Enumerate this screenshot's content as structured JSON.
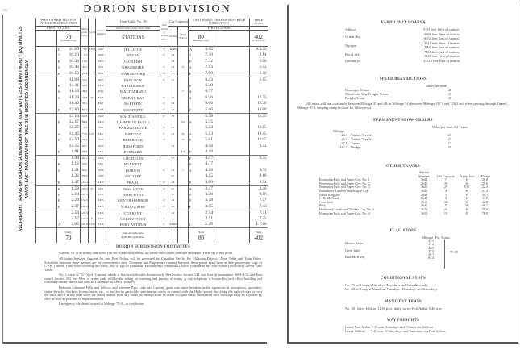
{
  "page_number": "246",
  "title": "DORION SUBDIVISION",
  "side_note": "ALL FREIGHT TRAINS ON DORION SUBDIVISION MUST KEEP NOT LESS THAN TWENTY (20) MINUTES APART. LAST PARAGRAPH OF RULE 91 IS MODIFIED ACCORDINGLY.",
  "header": {
    "westward": "WESTWARD TRAINS INFERIOR DIRECTION",
    "eastward": "EASTWARD TRAINS SUPERIOR DIRECTION",
    "first_class": "FIRST CLASS",
    "third_class": "THIRD CLASS",
    "miles": "Miles from Jellicoe",
    "symbols": "Symbols",
    "station_numbers": "Station Numbers",
    "timetable": "Time Table No. 85",
    "effective": "Taking Effect June 23rd, 1946",
    "stations": "STATIONS",
    "train_orders": "Train Orders or Telephone Offices",
    "car_capacity": "Car Capacity",
    "sidings": "Sidings",
    "other_tracks": "Other Tracks",
    "t79": "79",
    "t80": "80",
    "t402": "402",
    "passenger_daily": "Passenger Daily",
    "freight_daily": "Freight Daily",
    "pm": "PM",
    "am": "AM"
  },
  "rows": [
    [
      "L",
      "10.00",
      "0.0",
      "CKW",
      "3407",
      "JELLICOE",
      "T",
      "YARD",
      "",
      "A",
      "8.05",
      "A 3.40"
    ],
    [
      "*",
      "10.10",
      "5.4",
      "",
      "3409",
      "NEZAH",
      "P",
      "46",
      "",
      "*",
      "7.30",
      "2.14"
    ],
    [
      "F",
      "10.24",
      "13.6",
      "",
      "3410",
      "JACKFISH",
      "",
      "46",
      "",
      "F",
      "7.32",
      "1.56"
    ],
    [
      "S",
      "10.43",
      "20.4",
      "",
      "3411",
      "BRADMORE",
      "T",
      "46",
      "11",
      "S",
      "7.13",
      "1.42"
    ],
    [
      "F",
      "10.53",
      "25.4",
      "",
      "3412",
      "WARNEFORD",
      "P",
      "35",
      "",
      "F",
      "7.00",
      "1.30"
    ],
    [
      "",
      "11.09",
      "31.6",
      "",
      "3413",
      "PAYLOOR",
      "P",
      "47",
      "",
      "",
      "6.43",
      "1.15"
    ],
    [
      "F",
      "11.11",
      "34.9",
      "",
      "3440",
      "FARLOOBER",
      "",
      "",
      "",
      "F",
      "6.40",
      ""
    ],
    [
      "S",
      "11.15",
      "36.4",
      "",
      "3414",
      "MACDIARMID",
      "",
      "",
      "5",
      "S",
      "6.37",
      ""
    ],
    [
      "S",
      "11.29",
      "41.3",
      "W",
      "3415",
      "ORIENT BAY",
      "P",
      "46",
      "",
      "S",
      "6.26",
      "12.55"
    ],
    [
      "",
      "11.46",
      "50.1",
      "",
      "3417",
      "McKIRDY",
      "P",
      "46",
      "",
      "",
      "6.06",
      "12.30"
    ],
    [
      "F",
      "12.06",
      "60.3",
      "",
      "3418",
      "ROCHETTE",
      "P",
      "47",
      "",
      "F",
      "5.46",
      "12.06"
    ],
    [
      "",
      "12.14",
      "63.8",
      "",
      "3419",
      "MACDARRILL",
      "P",
      "35",
      "",
      "",
      "5.38",
      "11.25"
    ],
    [
      "F",
      "12.17",
      "66.4",
      "",
      "3420",
      "CAMERON FALLS",
      "",
      "",
      "W1",
      "S",
      "5.35",
      ""
    ],
    [
      "",
      "12.27",
      "71.5",
      "",
      "3421",
      "PARMACHENIE",
      "P",
      "47",
      "",
      "",
      "5.24",
      "11.05"
    ],
    [
      "S",
      "12.40",
      "77.9",
      "CW",
      "3422",
      "NIPIGON",
      "T",
      "42",
      "32",
      "S",
      "5.13",
      "10.45"
    ],
    [
      "F",
      "12.50",
      "82.4",
      "",
      "3424",
      "RED ROCK",
      "T",
      "",
      "42",
      "F",
      "5.01",
      "10.05"
    ],
    [
      "",
      "12.55",
      "84.7",
      "",
      "3425",
      "ROSSFORD",
      "",
      "46",
      "",
      "",
      "4.56",
      "9.53"
    ],
    [
      "F",
      "1.01",
      "88.4",
      "",
      "3441",
      "EVERARD",
      "",
      "",
      "E4",
      "F",
      "4.49",
      ""
    ],
    [
      "",
      "1.04",
      "89.5",
      "",
      "3426",
      "GOODELIN",
      "",
      "47",
      "",
      "F",
      "4.47",
      "9.45"
    ],
    [
      "F",
      "1.12",
      "93.0",
      "",
      "3427",
      "HURKETT",
      "",
      "",
      "",
      "F",
      "4.37",
      ""
    ],
    [
      "S",
      "1.21",
      "95.9",
      "",
      "3428",
      "DORION",
      "P",
      "56",
      "7",
      "S",
      "4.28",
      "9.33"
    ],
    [
      "",
      "1.32",
      "106.6",
      "",
      "3429",
      "ANCLIFF",
      "",
      "47",
      "",
      "",
      "4.15",
      "9.10"
    ],
    [
      "F",
      "1.47",
      "114.4",
      "",
      "3430",
      "PEARL",
      "P",
      "44",
      "",
      "F",
      "4.00",
      "8.54"
    ],
    [
      "F",
      "1.58",
      "123.4",
      "W",
      "3431",
      "PASS LAKE",
      "P",
      "47",
      "",
      "S",
      "3.47",
      "8.40"
    ],
    [
      "F",
      "2.14",
      "129.3",
      "",
      "3432",
      "AMETHYST",
      "",
      "47",
      "",
      "F",
      "3.28",
      "8.10"
    ],
    [
      "F",
      "2.24",
      "134.5",
      "",
      "3433",
      "SILVER HARBOR",
      "P",
      "42",
      "",
      "F",
      "3.18",
      "7.57"
    ],
    [
      "F",
      "2.37",
      "140.4",
      "",
      "3435",
      "WILD GOOSE",
      "P",
      "46",
      "",
      "F",
      "3.05",
      "7.43"
    ],
    [
      "",
      "2.54",
      "145.5",
      "",
      "3436",
      "CURRENT",
      "",
      "46",
      "",
      "",
      "2.54",
      "7.31"
    ],
    [
      "",
      "2.57",
      "145.9",
      "K",
      "3439",
      "CURRENT JCT",
      "T",
      "",
      "",
      "",
      "2.51",
      "7.25"
    ],
    [
      "A",
      "3.05",
      "147.9",
      "CEW",
      "3438",
      "PORT ARTHUR",
      "T",
      "YARD",
      "",
      "L",
      "2.45",
      "L 7.00"
    ]
  ],
  "footer": {
    "daily": "Daily",
    "t79": "79",
    "t80": "80",
    "t402": "402",
    "rule1": "Rule 42 applicable.",
    "rule2": "Rule 405 applicable."
  },
  "footnotes": {
    "title": "DORION SUBDIVISION FOOTNOTES",
    "paras": [
      "Current Jct. is an initial station for Dorion Subdivision trains. All trains must obtain terminal clearance (Form H) at this point.",
      "All trains between Current Jct. and Port Arthur will be governed by Canadian Pacific Ry. (Algoma District) Time Table and Train Rules. Schedules between these stations are for convenience only. Trainmen and Enginemen running between these points must have in their possession copy of C.P.R. Current Time Table covering this track, also a copy of Canadian National Rlys. Manitoba District (Lakehead and Port Arthur Divisions) Current Time Table.",
      "No. 1 track in \"G\" Yard (Current) which is first track South of main track, West switch located 211 feet East of semaphore 3689-4-52 and East switch located 392 feet West of water tank, will be the siding for meeting and passing of trains. A city telephone is located in yard office building and communications can be had with all Lakehead offices if required.",
      "Between Cameron Falls and Jellicoe and between Pass Lake and Current, great care must be taken in the operation of snowplows, spreaders, steam derricks, ditchers, broom hoists, etc., to see that no part of the mechanism comes in contact with the Hydro power line along the right-of-way or over the track and if at any time wires are found broken from any cause no attempt must be made to repair them, but instead such breakage must be reported by wire as soon as possible to Superintendent.",
      "Emergency telephone located at Mileage 75.8—in tool house."
    ]
  },
  "yard_limits": {
    "title": "YARD LIMIT BOARDS",
    "items": [
      {
        "station": "Jellicoe",
        "notes": [
          "3721 feet West of station."
        ]
      },
      {
        "station": "Orient Bay",
        "notes": [
          "5938 feet West of station.",
          "6134 feet East of station."
        ]
      },
      {
        "station": "Nipigon",
        "notes": [
          "5015 feet West of station.",
          "7097 feet East of station."
        ]
      },
      {
        "station": "Pass Lake",
        "notes": [
          "7428 feet East of station.",
          "5348 feet West of station."
        ]
      },
      {
        "station": "Current Jct",
        "notes": [
          "14319 feet East of station."
        ]
      }
    ]
  },
  "speed": {
    "title": "SPEED RESTRICTIONS",
    "unit": "Miles per hour",
    "items": [
      {
        "label": "Passenger Trains",
        "value": "40"
      },
      {
        "label": "Mixed and Way Freight Trains",
        "value": "35"
      },
      {
        "label": "Freight Trains",
        "value": "30"
      }
    ],
    "note": "All trains will run cautiously between Mileage 35 and 48; at Mileage 54; between Mileage 117.3 and 120.2 and when passing through Tunnel, Mileage 37.1, keeping sharp lookout for fallen rocks."
  },
  "slow_orders": {
    "title": "PERMANENT SLOW ORDERS",
    "col_mileage": "Mileage",
    "col_speed": "Miles per hour All Trains",
    "items": [
      {
        "mileage": "24.8",
        "what": "Timber Trestle",
        "speed": "25"
      },
      {
        "mileage": "25.3",
        "what": "Timber Trestle",
        "speed": "25"
      },
      {
        "mileage": "37.1",
        "what": "Tunnel",
        "speed": "15"
      },
      {
        "mileage": "122.4",
        "what": "Bridge",
        "speed": "20"
      }
    ]
  },
  "other_tracks": {
    "title": "OTHER TRACKS",
    "cols": [
      "Station Number",
      "Car Capacity",
      "Points face",
      "Mileage"
    ],
    "items": [
      [
        "Brompton Pulp and Paper Coy. No. 1",
        "3643",
        "7",
        "E",
        "26.8"
      ],
      [
        "Brompton Pulp and Paper Coy. No. 2",
        "3643",
        "20",
        "W",
        "21.6"
      ],
      [
        "Brompton Pulp and Paper Coy. No. 3",
        "3645",
        "28",
        "EW",
        "22.3"
      ],
      [
        "Beardmore Lumber and Supply Coy.",
        "3642",
        "4",
        "W",
        "23.4"
      ],
      [
        "Justin Kingsley",
        "3648",
        "3",
        "E",
        "31.3"
      ],
      [
        "C. R. McBeath",
        "3649",
        "9",
        "W",
        "34.8"
      ],
      [
        "Cove Inlet",
        "3616",
        "12",
        "W",
        "42.8"
      ],
      [
        "Pulp",
        "3647",
        "8",
        "W",
        "56.2"
      ],
      [
        "Driftwood Lands and Timber Coy. No. 1",
        "3622",
        "22",
        "E",
        "77.3"
      ],
      [
        "Brompton Pulp and Paper Coy. No. 4",
        "3633",
        "15",
        "E",
        "78.9"
      ]
    ]
  },
  "flag_stops": {
    "title": "FLAG STOPS",
    "col_mileage": "Mileage",
    "col_trains": "For Trains",
    "trains": "79-80",
    "items": [
      {
        "name": "Mount Regis",
        "mileage": [
          "33.5",
          "37.2"
        ]
      },
      {
        "name": "Cove Inlet",
        "mileage": [
          "42.8",
          "45.5"
        ]
      },
      {
        "name": "East McKirdy",
        "mileage": [
          "49.7",
          "61.4"
        ]
      }
    ]
  },
  "conditional": {
    "title": "CONDITIONAL STOPS",
    "lines": [
      "No. 79 will stop at Nezah on Tuesdays and Saturdays only.",
      "No. 80 will stop at Nezah on Tuesdays, Thursdays and Saturdays."
    ]
  },
  "manifest": {
    "title": "MANIFEST TRAIN",
    "lines": [
      "No. 401 leave Jellicoe 11.30 p.m., daily, arrive Port Arthur 5.40 a.m."
    ]
  },
  "way_freights": {
    "title": "WAY FREIGHTS",
    "lines": [
      "Leave Port Arthur 7.30 a.m. Tuesdays and Fridays for Jellicoe.",
      "Leave Jellicoe      7.45 a.m. Wednesdays and Saturdays for Port Arthur."
    ]
  }
}
